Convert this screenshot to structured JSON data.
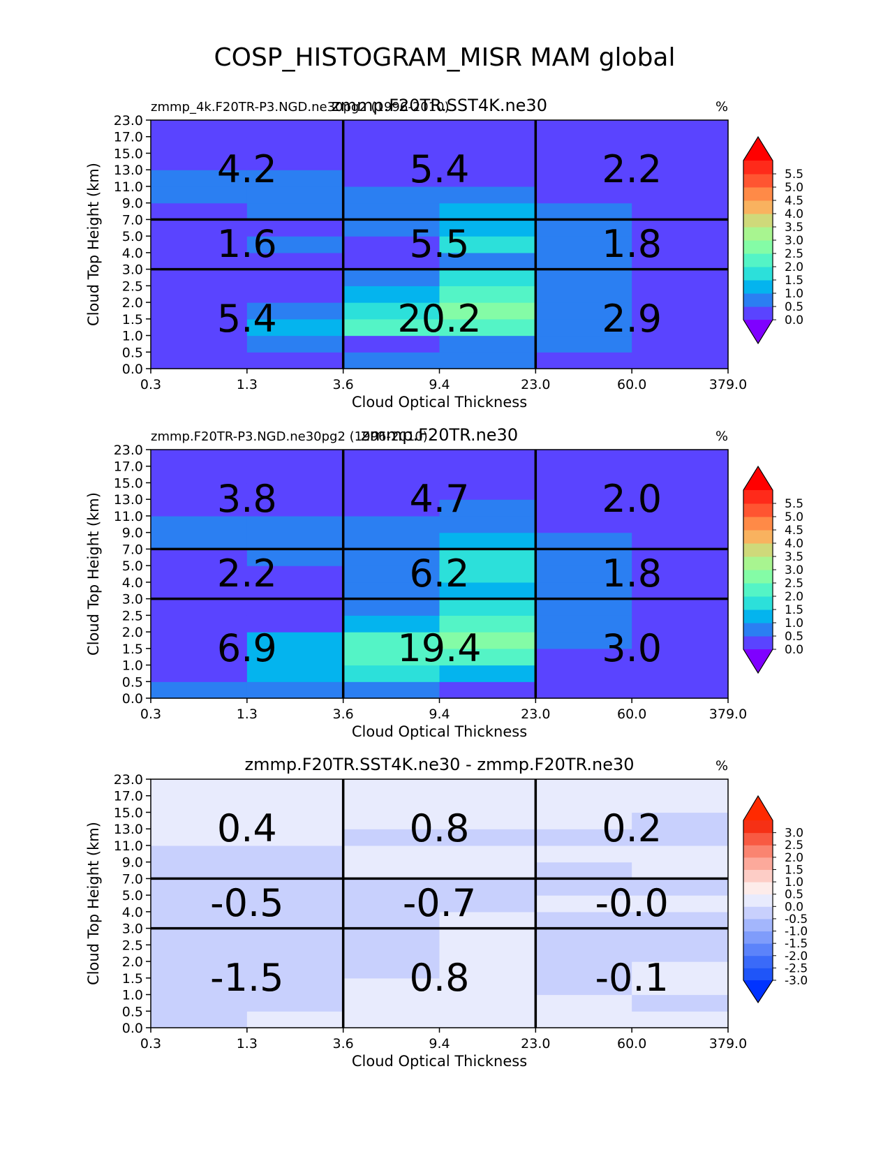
{
  "page_title": "COSP_HISTOGRAM_MISR MAM global",
  "chart_data": [
    {
      "type": "heatmap",
      "title": "zmmp.F20TR.SST4K.ne30",
      "subtitle_left": "zmmp_4k.F20TR-P3.NGD.ne30pg2 (1996-2010)",
      "units_label": "%",
      "xlabel": "Cloud Optical Thickness",
      "ylabel": "Cloud Top Height (km)",
      "x_tick_labels": [
        "0.3",
        "1.3",
        "3.6",
        "9.4",
        "23.0",
        "60.0",
        "379.0"
      ],
      "y_tick_labels": [
        "0.0",
        "0.5",
        "1.0",
        "1.5",
        "2.0",
        "2.5",
        "3.0",
        "4.0",
        "5.0",
        "7.0",
        "9.0",
        "11.0",
        "13.0",
        "15.0",
        "17.0",
        "23.0"
      ],
      "colorbar": {
        "levels": [
          0.0,
          0.5,
          1.0,
          1.5,
          2.0,
          2.5,
          3.0,
          3.5,
          4.0,
          4.5,
          5.0,
          5.5
        ],
        "tick_labels": [
          "0.0",
          "0.5",
          "1.0",
          "1.5",
          "2.0",
          "2.5",
          "3.0",
          "3.5",
          "4.0",
          "4.5",
          "5.0",
          "5.5"
        ],
        "colors": [
          "#5a44ff",
          "#2b7ff2",
          "#04b4ee",
          "#2ce0da",
          "#54f4c6",
          "#84fca6",
          "#a8f590",
          "#cfd97a",
          "#f9b25f",
          "#ff8a47",
          "#ff5531",
          "#ff2a1a"
        ],
        "under_color": "#7f00ff",
        "over_color": "#ff0000"
      },
      "cells": [
        [
          0.2,
          0.2,
          0.8,
          0.8,
          0.2,
          0.2
        ],
        [
          0.2,
          0.8,
          0.2,
          0.8,
          0.8,
          0.2
        ],
        [
          0.2,
          1.3,
          2.2,
          2.2,
          0.8,
          0.2
        ],
        [
          0.2,
          0.8,
          1.8,
          2.8,
          0.8,
          0.2
        ],
        [
          0.2,
          0.2,
          1.3,
          2.3,
          0.8,
          0.2
        ],
        [
          0.2,
          0.2,
          0.8,
          1.8,
          0.8,
          0.2
        ],
        [
          0.2,
          0.2,
          0.2,
          0.8,
          0.8,
          0.2
        ],
        [
          0.2,
          0.8,
          0.2,
          1.8,
          0.8,
          0.2
        ],
        [
          0.2,
          0.2,
          0.8,
          1.3,
          0.8,
          0.2
        ],
        [
          0.2,
          0.8,
          0.8,
          1.3,
          0.8,
          0.2
        ],
        [
          0.8,
          0.8,
          0.8,
          0.8,
          0.2,
          0.2
        ],
        [
          0.8,
          0.8,
          0.2,
          0.2,
          0.2,
          0.2
        ],
        [
          0.2,
          0.2,
          0.2,
          0.2,
          0.2,
          0.2
        ],
        [
          0.2,
          0.2,
          0.2,
          0.2,
          0.2,
          0.2
        ],
        [
          0.2,
          0.2,
          0.2,
          0.2,
          0.2,
          0.2
        ]
      ],
      "box_labels": [
        [
          "5.4",
          "20.2",
          "2.9"
        ],
        [
          "1.6",
          "5.5",
          "1.8"
        ],
        [
          "4.2",
          "5.4",
          "2.2"
        ]
      ]
    },
    {
      "type": "heatmap",
      "title": "zmmp.F20TR.ne30",
      "subtitle_left": "zmmp.F20TR-P3.NGD.ne30pg2 (1996-2010)",
      "units_label": "%",
      "xlabel": "Cloud Optical Thickness",
      "ylabel": "Cloud Top Height (km)",
      "x_tick_labels": [
        "0.3",
        "1.3",
        "3.6",
        "9.4",
        "23.0",
        "60.0",
        "379.0"
      ],
      "y_tick_labels": [
        "0.0",
        "0.5",
        "1.0",
        "1.5",
        "2.0",
        "2.5",
        "3.0",
        "4.0",
        "5.0",
        "7.0",
        "9.0",
        "11.0",
        "13.0",
        "15.0",
        "17.0",
        "23.0"
      ],
      "colorbar": {
        "levels": [
          0.0,
          0.5,
          1.0,
          1.5,
          2.0,
          2.5,
          3.0,
          3.5,
          4.0,
          4.5,
          5.0,
          5.5
        ],
        "tick_labels": [
          "0.0",
          "0.5",
          "1.0",
          "1.5",
          "2.0",
          "2.5",
          "3.0",
          "3.5",
          "4.0",
          "4.5",
          "5.0",
          "5.5"
        ],
        "colors": [
          "#5a44ff",
          "#2b7ff2",
          "#04b4ee",
          "#2ce0da",
          "#54f4c6",
          "#84fca6",
          "#a8f590",
          "#cfd97a",
          "#f9b25f",
          "#ff8a47",
          "#ff5531",
          "#ff2a1a"
        ],
        "under_color": "#7f00ff",
        "over_color": "#ff0000"
      },
      "cells": [
        [
          0.8,
          0.8,
          0.8,
          0.2,
          0.2,
          0.2
        ],
        [
          0.2,
          1.3,
          1.8,
          1.3,
          0.2,
          0.2
        ],
        [
          0.2,
          1.3,
          2.3,
          2.3,
          0.2,
          0.2
        ],
        [
          0.2,
          1.3,
          2.3,
          2.8,
          0.8,
          0.2
        ],
        [
          0.2,
          0.2,
          1.3,
          2.3,
          0.8,
          0.2
        ],
        [
          0.2,
          0.2,
          0.8,
          1.8,
          0.8,
          0.2
        ],
        [
          0.2,
          0.2,
          0.8,
          1.3,
          0.8,
          0.2
        ],
        [
          0.2,
          0.2,
          0.8,
          1.8,
          0.8,
          0.2
        ],
        [
          0.2,
          0.8,
          0.8,
          1.8,
          0.8,
          0.2
        ],
        [
          0.8,
          0.8,
          0.8,
          1.3,
          0.8,
          0.2
        ],
        [
          0.8,
          0.8,
          0.8,
          0.8,
          0.2,
          0.2
        ],
        [
          0.2,
          0.2,
          0.2,
          0.8,
          0.2,
          0.2
        ],
        [
          0.2,
          0.2,
          0.2,
          0.2,
          0.2,
          0.2
        ],
        [
          0.2,
          0.2,
          0.2,
          0.2,
          0.2,
          0.2
        ],
        [
          0.2,
          0.2,
          0.2,
          0.2,
          0.2,
          0.2
        ]
      ],
      "box_labels": [
        [
          "6.9",
          "19.4",
          "3.0"
        ],
        [
          "2.2",
          "6.2",
          "1.8"
        ],
        [
          "3.8",
          "4.7",
          "2.0"
        ]
      ]
    },
    {
      "type": "heatmap",
      "title": "zmmp.F20TR.SST4K.ne30 - zmmp.F20TR.ne30",
      "subtitle_left": "",
      "units_label": "%",
      "xlabel": "Cloud Optical Thickness",
      "ylabel": "Cloud Top Height (km)",
      "x_tick_labels": [
        "0.3",
        "1.3",
        "3.6",
        "9.4",
        "23.0",
        "60.0",
        "379.0"
      ],
      "y_tick_labels": [
        "0.0",
        "0.5",
        "1.0",
        "1.5",
        "2.0",
        "2.5",
        "3.0",
        "4.0",
        "5.0",
        "7.0",
        "9.0",
        "11.0",
        "13.0",
        "15.0",
        "17.0",
        "23.0"
      ],
      "colorbar": {
        "levels": [
          -3.0,
          -2.5,
          -2.0,
          -1.5,
          -1.0,
          -0.5,
          0.0,
          0.5,
          1.0,
          1.5,
          2.0,
          2.5,
          3.0
        ],
        "tick_labels": [
          "-3.0",
          "-2.5",
          "-2.0",
          "-1.5",
          "-1.0",
          "-0.5",
          "0.0",
          "0.5",
          "1.0",
          "1.5",
          "2.0",
          "2.5",
          "3.0"
        ],
        "colors": [
          "#1f55f8",
          "#3a6af9",
          "#5c83fa",
          "#7f9cfb",
          "#a3b6fc",
          "#c8d0fd",
          "#e8ebfd",
          "#fdecea",
          "#fdcdc6",
          "#fca99b",
          "#fa8470",
          "#f85a42",
          "#f63015"
        ],
        "under_color": "#0033ff",
        "over_color": "#ff2a00"
      },
      "cells": [
        [
          -0.2,
          0.2,
          0.2,
          0.2,
          0.2,
          0.2
        ],
        [
          -0.2,
          -0.2,
          0.2,
          0.2,
          0.2,
          -0.2
        ],
        [
          -0.2,
          -0.2,
          0.2,
          0.2,
          -0.2,
          0.2
        ],
        [
          -0.2,
          -0.2,
          -0.2,
          0.2,
          -0.2,
          0.2
        ],
        [
          -0.2,
          -0.2,
          -0.2,
          0.2,
          -0.2,
          -0.2
        ],
        [
          -0.2,
          -0.2,
          -0.2,
          0.2,
          -0.2,
          -0.2
        ],
        [
          -0.2,
          -0.2,
          -0.2,
          0.2,
          -0.2,
          -0.2
        ],
        [
          -0.2,
          -0.2,
          -0.2,
          -0.2,
          0.2,
          0.2
        ],
        [
          -0.2,
          -0.2,
          -0.2,
          -0.2,
          -0.2,
          -0.2
        ],
        [
          -0.2,
          -0.2,
          0.2,
          0.2,
          -0.2,
          0.2
        ],
        [
          -0.2,
          -0.2,
          0.2,
          0.2,
          0.2,
          0.2
        ],
        [
          0.2,
          0.2,
          -0.2,
          -0.2,
          -0.2,
          -0.2
        ],
        [
          0.2,
          0.2,
          0.2,
          0.2,
          0.2,
          -0.2
        ],
        [
          0.2,
          0.2,
          0.2,
          0.2,
          0.2,
          0.2
        ],
        [
          0.2,
          0.2,
          0.2,
          0.2,
          0.2,
          0.2
        ]
      ],
      "box_labels": [
        [
          "-1.5",
          "0.8",
          "-0.1"
        ],
        [
          "-0.5",
          "-0.7",
          "-0.0"
        ],
        [
          "0.4",
          "0.8",
          "0.2"
        ]
      ]
    }
  ]
}
